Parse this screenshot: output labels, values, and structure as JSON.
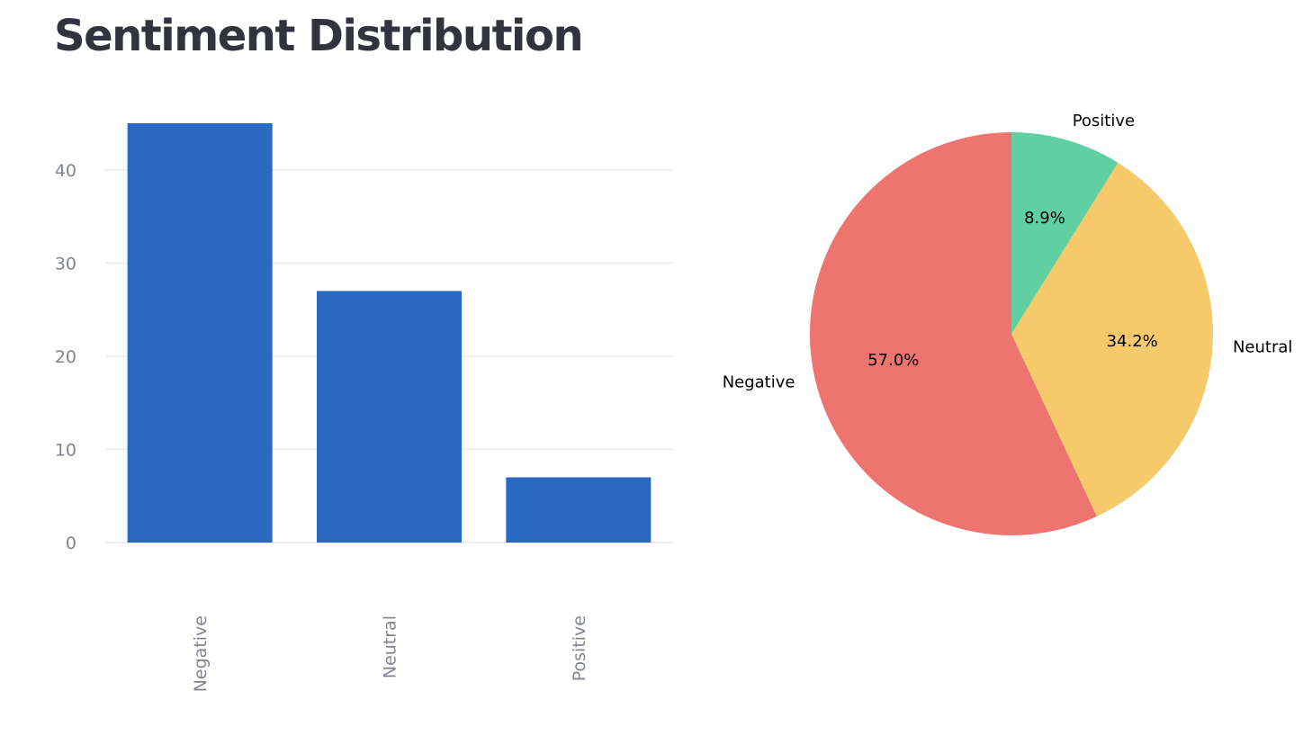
{
  "title": "Sentiment Distribution",
  "colors": {
    "bar": "#2969c2",
    "grid": "#e6e9ef",
    "tick": "#808495",
    "title": "#31333f",
    "pie": [
      "#ee746f",
      "#f6ca6b",
      "#60cfa2"
    ]
  },
  "chart_data": [
    {
      "type": "bar",
      "categories": [
        "Negative",
        "Neutral",
        "Positive"
      ],
      "values": [
        45,
        27,
        7
      ],
      "yticks": [
        0,
        10,
        20,
        30,
        40
      ],
      "ylim": [
        0,
        47
      ],
      "grid": true,
      "xlabel": "",
      "ylabel": ""
    },
    {
      "type": "pie",
      "labels": [
        "Negative",
        "Neutral",
        "Positive"
      ],
      "values": [
        45,
        27,
        7
      ],
      "percentages": [
        "57.0%",
        "34.2%",
        "8.9%"
      ]
    }
  ]
}
